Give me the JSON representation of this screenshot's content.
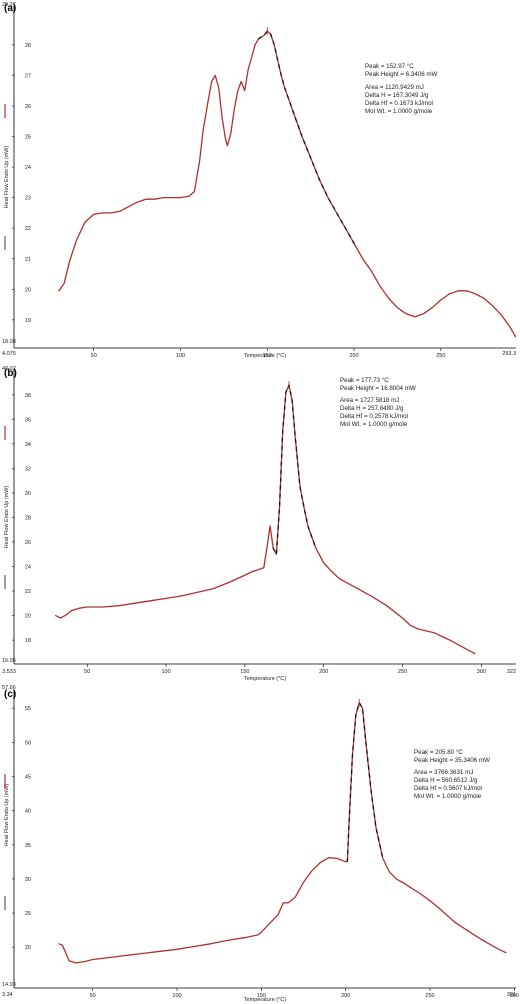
{
  "chart_data": [
    {
      "type": "line",
      "panel": "(a)",
      "xlabel": "Temperature (°C)",
      "ylabel": "Heat Flow Endo Up (mW)",
      "xlim": [
        4.075,
        293.3
      ],
      "ylim": [
        18.08,
        29.27
      ],
      "xmin_label": "4.075",
      "xmax_label": "293.3",
      "ymin_label": "18.08",
      "ymax_label": "29.27",
      "xticks": [
        50,
        100,
        150,
        200,
        250
      ],
      "yticks": [
        19,
        20,
        21,
        22,
        23,
        24,
        25,
        26,
        27,
        28
      ],
      "annotations": {
        "peak": "Peak = 152.97 °C",
        "peak_height": "Peak Height = 6.3406 mW",
        "area": "Area = 1120.9429 mJ",
        "delta_h": "Delta H = 167.3049 J/g",
        "delta_hf": "Delta Hf = 0.1673 kJ/mol",
        "mol_wt": "Mol Wt. = 1.0000 g/mole"
      },
      "series": [
        {
          "x": [
            30,
            33,
            36,
            40,
            45,
            50,
            55,
            60,
            65,
            70,
            75,
            80,
            85,
            90,
            95,
            100,
            105,
            108,
            111,
            113,
            116,
            118,
            120,
            122,
            124,
            126,
            127,
            129,
            131,
            133,
            135,
            137,
            139,
            141,
            143,
            145,
            148,
            150,
            152,
            154,
            156,
            158,
            160,
            165,
            170,
            175,
            180,
            185,
            190,
            195,
            200,
            205,
            210,
            215,
            220,
            225,
            230,
            235,
            240,
            245,
            250,
            255,
            260,
            265,
            270,
            275,
            280,
            285,
            290,
            293
          ],
          "y": [
            19.95,
            20.2,
            20.9,
            21.6,
            22.2,
            22.45,
            22.5,
            22.5,
            22.55,
            22.7,
            22.85,
            22.95,
            22.95,
            23.0,
            23.0,
            23.0,
            23.05,
            23.2,
            24.2,
            25.2,
            26.2,
            26.8,
            27.0,
            26.6,
            25.6,
            24.9,
            24.7,
            25.1,
            25.9,
            26.5,
            26.8,
            26.5,
            27.2,
            27.6,
            28.0,
            28.2,
            28.3,
            28.45,
            28.35,
            28.0,
            27.5,
            27.0,
            26.6,
            25.8,
            25.0,
            24.3,
            23.6,
            23.0,
            22.5,
            22.0,
            21.5,
            21.0,
            20.6,
            20.1,
            19.7,
            19.4,
            19.2,
            19.1,
            19.2,
            19.4,
            19.65,
            19.85,
            19.95,
            19.95,
            19.85,
            19.7,
            19.45,
            19.15,
            18.75,
            18.45
          ]
        }
      ]
    },
    {
      "type": "line",
      "panel": "(b)",
      "xlabel": "Temperature (°C)",
      "ylabel": "Heat Flow Endo Up (mW)",
      "xlim": [
        3.533,
        322
      ],
      "ylim": [
        16.05,
        40.02
      ],
      "xmin_label": "3.533",
      "xmax_label": "322",
      "ymin_label": "16.05",
      "ymax_label": "40.02",
      "xticks": [
        50,
        100,
        150,
        200,
        250,
        300
      ],
      "yticks": [
        18,
        20,
        22,
        24,
        26,
        28,
        30,
        32,
        34,
        36,
        38
      ],
      "annotations": {
        "peak": "Peak = 177.73 °C",
        "peak_height": "Peak Height = 16.8004 mW",
        "area": "Area = 1727.5818 mJ",
        "delta_h": "Delta H = 257.8480 J/g",
        "delta_hf": "Delta Hf = 0.2578 kJ/mol",
        "mol_wt": "Mol Wt. = 1.0000 g/mole"
      },
      "series": [
        {
          "x": [
            30,
            33,
            36,
            40,
            45,
            50,
            60,
            70,
            80,
            90,
            100,
            110,
            120,
            130,
            140,
            150,
            155,
            160,
            162,
            164,
            166,
            168,
            170,
            172,
            174,
            176,
            178,
            180,
            182,
            185,
            188,
            190,
            195,
            200,
            205,
            210,
            220,
            230,
            240,
            250,
            255,
            260,
            270,
            280,
            290,
            296
          ],
          "y": [
            20.0,
            19.8,
            20.0,
            20.4,
            20.6,
            20.7,
            20.7,
            20.8,
            21.0,
            21.2,
            21.4,
            21.6,
            21.9,
            22.2,
            22.7,
            23.3,
            23.6,
            23.8,
            23.9,
            25.5,
            27.3,
            25.5,
            25.0,
            29.0,
            35.0,
            38.2,
            38.8,
            37.5,
            34.5,
            30.5,
            28.5,
            27.3,
            25.5,
            24.3,
            23.6,
            23.0,
            22.3,
            21.6,
            20.8,
            19.8,
            19.2,
            18.9,
            18.6,
            18.0,
            17.3,
            16.9
          ]
        }
      ]
    },
    {
      "type": "line",
      "panel": "(c)",
      "xlabel": "Temperature (°C)",
      "ylabel": "Heat Flow Endo Up (mW)",
      "xlim": [
        3.34,
        301
      ],
      "ylim": [
        14.03,
        57.66
      ],
      "xmin_label": "3.34",
      "xmax_label": "301",
      "ymin_label": "14.03",
      "ymax_label": "57.66",
      "xticks": [
        50,
        100,
        150,
        200,
        250,
        300
      ],
      "yticks": [
        20,
        25,
        30,
        35,
        40,
        45,
        50,
        55
      ],
      "annotations": {
        "peak": "Peak = 205.80 °C",
        "peak_height": "Peak Height = 35.3406 mW",
        "area": "Area = 3766.3631 mJ",
        "delta_h": "Delta H = 560.6512 J/g",
        "delta_hf": "Delta Hf = 0.5607 kJ/mol",
        "mol_wt": "Mol Wt. = 1.0000 g/mole"
      },
      "series": [
        {
          "x": [
            30,
            32,
            34,
            36,
            40,
            45,
            50,
            60,
            70,
            80,
            90,
            100,
            110,
            120,
            130,
            140,
            148,
            150,
            155,
            160,
            163,
            166,
            170,
            175,
            180,
            185,
            190,
            195,
            200,
            201,
            202,
            204,
            206,
            208,
            210,
            212,
            215,
            218,
            222,
            226,
            230,
            235,
            240,
            245,
            250,
            255,
            260,
            265,
            270,
            275,
            280,
            285,
            290,
            295
          ],
          "y": [
            20.5,
            20.3,
            19.2,
            18.0,
            17.7,
            17.9,
            18.2,
            18.5,
            18.8,
            19.1,
            19.4,
            19.7,
            20.1,
            20.5,
            21.0,
            21.4,
            21.8,
            22.2,
            23.5,
            24.8,
            26.5,
            26.5,
            27.3,
            29.5,
            31.2,
            32.4,
            33.1,
            33.0,
            32.5,
            32.6,
            38.0,
            48.0,
            54.0,
            55.8,
            55.0,
            50.0,
            43.0,
            37.5,
            33.0,
            31.0,
            30.0,
            29.3,
            28.5,
            27.7,
            26.8,
            25.8,
            24.7,
            23.6,
            22.8,
            22.0,
            21.2,
            20.5,
            19.8,
            19.2
          ]
        }
      ]
    }
  ]
}
